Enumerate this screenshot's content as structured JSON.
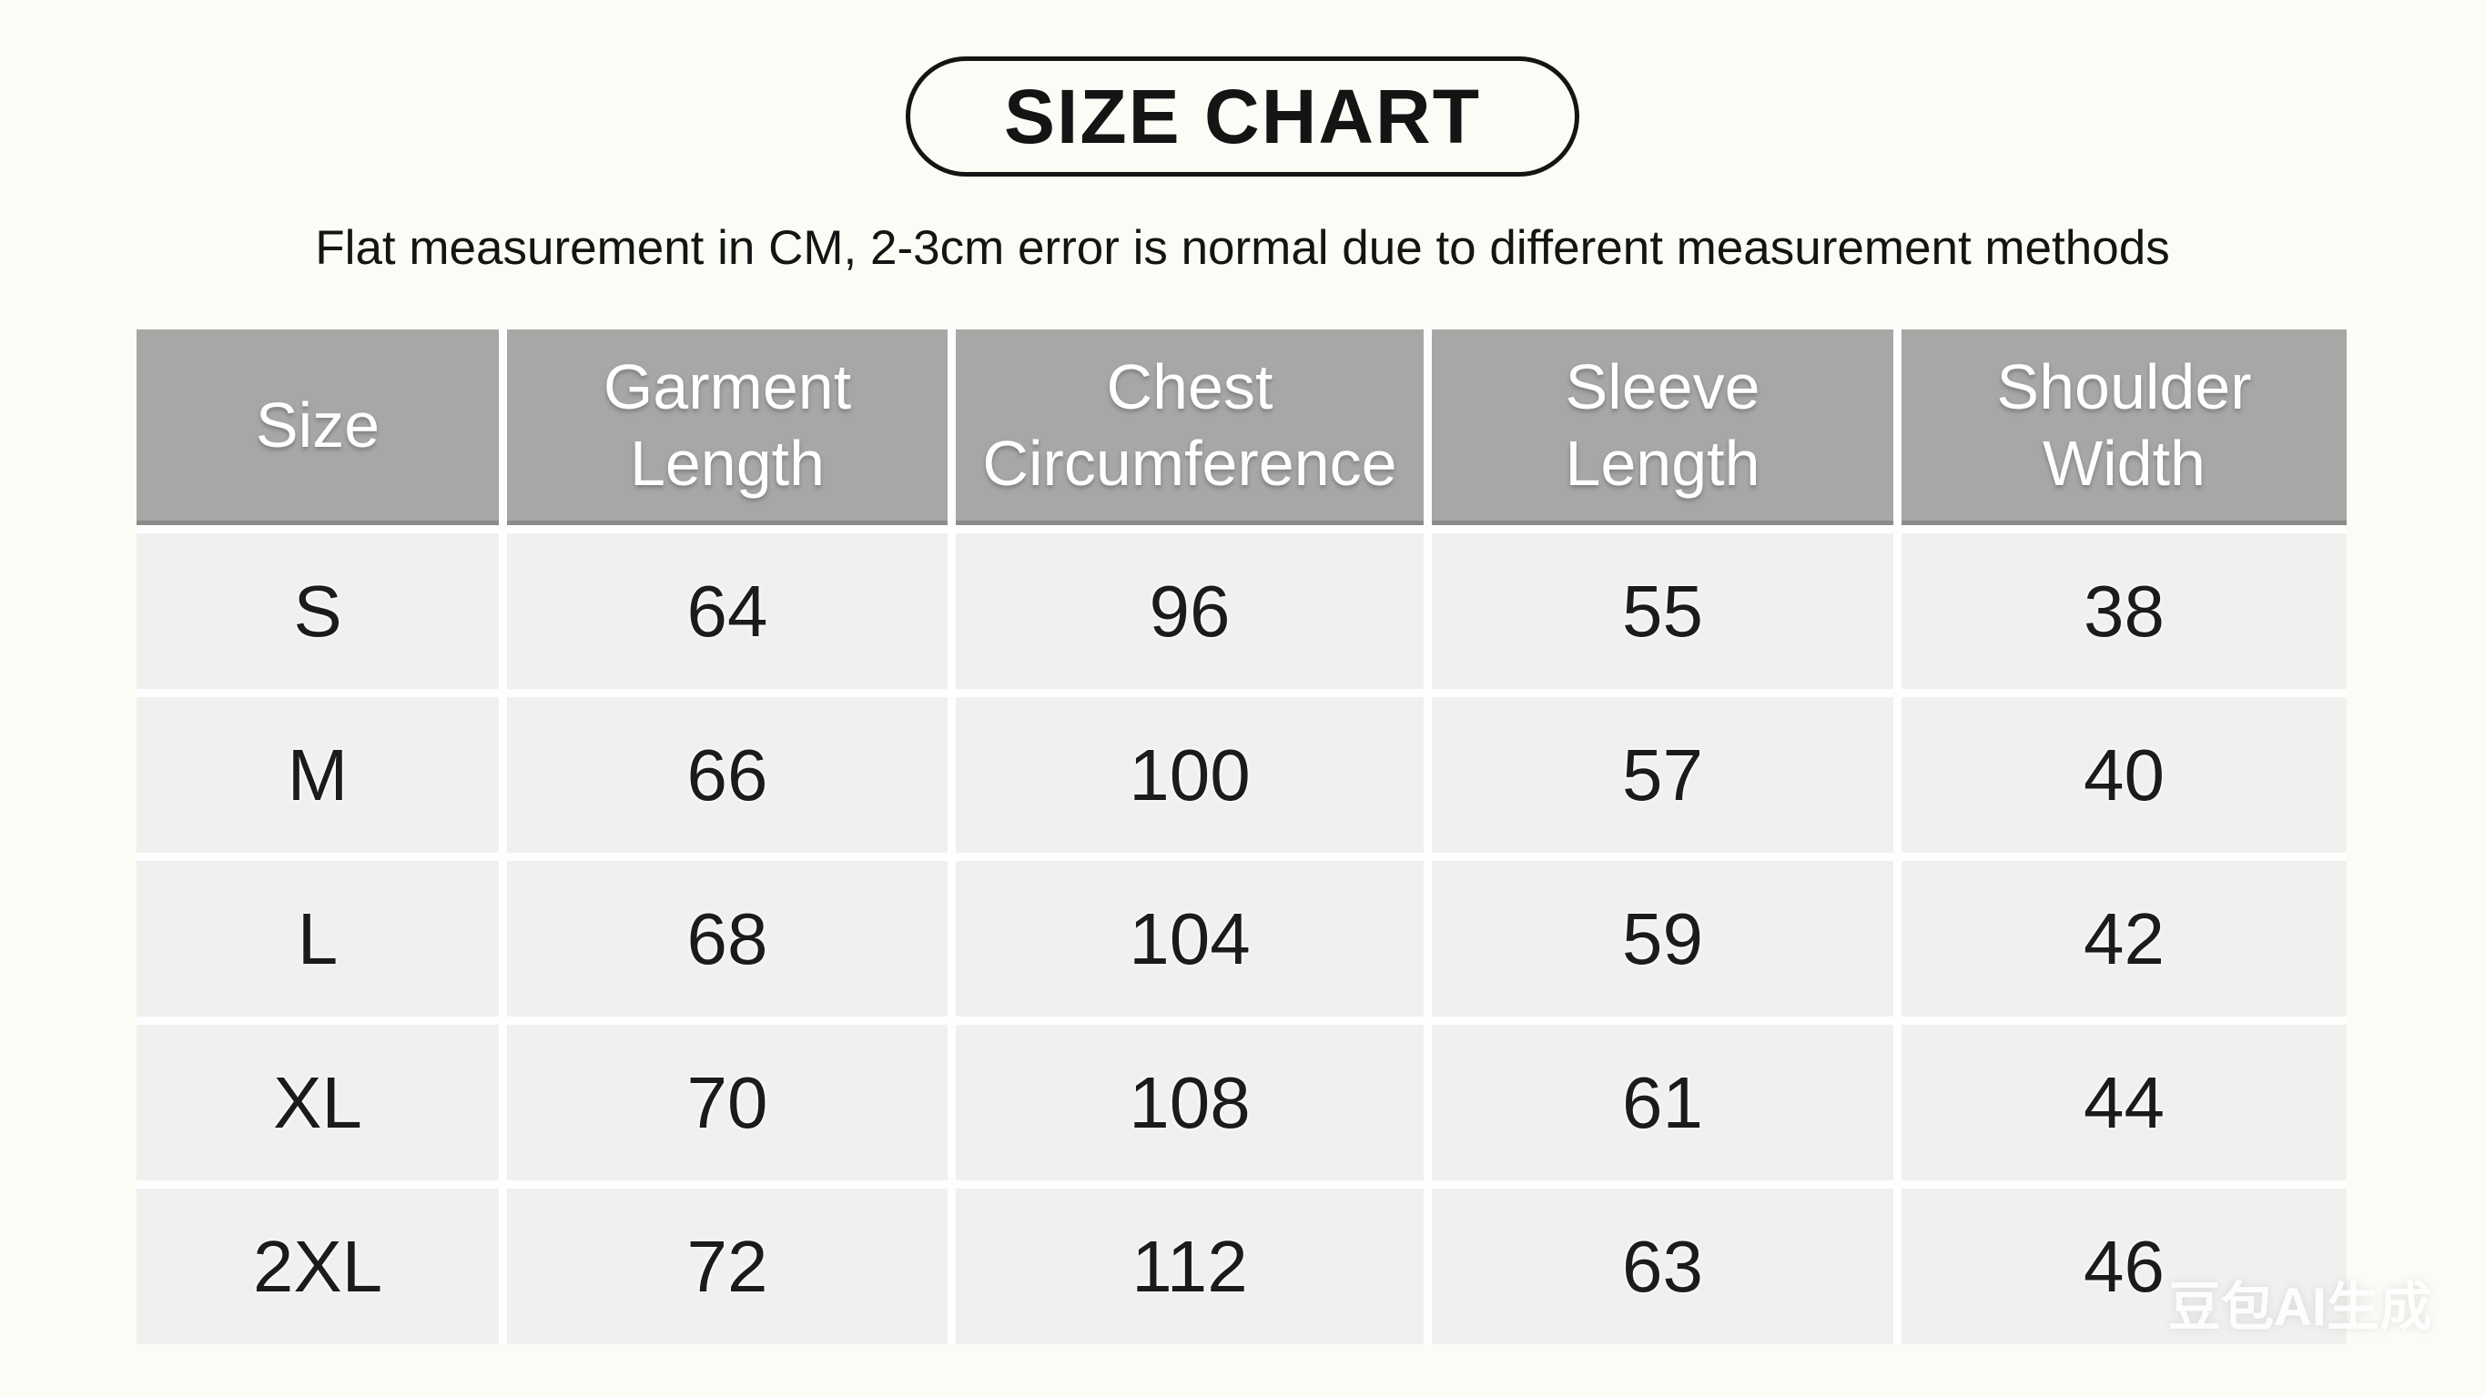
{
  "page": {
    "title": "SIZE CHART",
    "subtitle": "Flat measurement in CM, 2-3cm error is normal due to different measurement methods",
    "watermark": "豆包AI生成"
  },
  "chart_data": {
    "type": "table",
    "title": "SIZE CHART",
    "subtitle": "Flat measurement in CM, 2-3cm error is normal due to different measurement methods",
    "unit": "cm",
    "columns": [
      "Size",
      "Garment Length",
      "Chest Circumference",
      "Sleeve Length",
      "Shoulder Width"
    ],
    "rows": [
      [
        "S",
        64,
        96,
        55,
        38
      ],
      [
        "M",
        66,
        100,
        57,
        40
      ],
      [
        "L",
        68,
        104,
        59,
        42
      ],
      [
        "XL",
        70,
        108,
        61,
        44
      ],
      [
        "2XL",
        72,
        112,
        63,
        46
      ]
    ]
  },
  "colors": {
    "page_bg": "#fcfbf6",
    "header_bg": "#a8a7a5",
    "header_text": "#ffffff",
    "cell_bg": "#f1f0ee",
    "cell_text": "#1b1b1b",
    "pill_border": "#141414",
    "watermark_text": "#ffffff"
  }
}
